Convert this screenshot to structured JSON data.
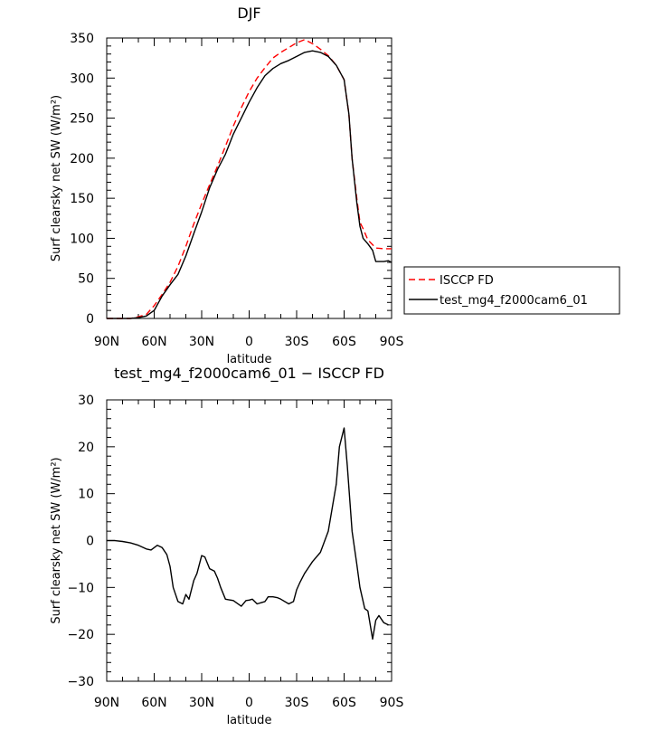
{
  "chart_data": [
    {
      "type": "line",
      "title": "DJF",
      "xlabel": "latitude",
      "ylabel": "Surf clearsky net SW (W/m²)",
      "xlim": [
        90,
        -90
      ],
      "ylim": [
        0,
        350
      ],
      "xticks": [
        90,
        60,
        30,
        0,
        -30,
        -60,
        -90
      ],
      "xtick_labels": [
        "90N",
        "60N",
        "30N",
        "0",
        "30S",
        "60S",
        "90S"
      ],
      "yticks": [
        0,
        50,
        100,
        150,
        200,
        250,
        300,
        350
      ],
      "ytick_labels": [
        "0",
        "50",
        "100",
        "150",
        "200",
        "250",
        "300",
        "350"
      ],
      "legend_position": "right",
      "series": [
        {
          "name": "ISCCP FD",
          "color": "#ff0000",
          "dash": "dashed",
          "x": [
            90,
            85,
            80,
            75,
            70,
            65,
            60,
            55,
            50,
            45,
            40,
            35,
            30,
            25,
            20,
            15,
            10,
            5,
            0,
            -5,
            -10,
            -15,
            -20,
            -25,
            -30,
            -35,
            -40,
            -45,
            -50,
            -55,
            -60,
            -63,
            -65,
            -68,
            -70,
            -72,
            -75,
            -80,
            -85,
            -90
          ],
          "values": [
            0,
            0,
            0,
            0,
            2,
            5,
            16,
            30,
            45,
            65,
            90,
            118,
            143,
            167,
            190,
            215,
            240,
            263,
            283,
            300,
            313,
            325,
            332,
            338,
            344,
            348,
            343,
            336,
            328,
            316,
            298,
            255,
            200,
            150,
            120,
            112,
            98,
            88,
            87,
            87
          ]
        },
        {
          "name": "test_mg4_f2000cam6_01",
          "color": "#000000",
          "dash": "solid",
          "x": [
            90,
            85,
            80,
            75,
            70,
            65,
            60,
            55,
            50,
            45,
            40,
            35,
            30,
            25,
            20,
            15,
            10,
            5,
            0,
            -5,
            -10,
            -15,
            -20,
            -25,
            -30,
            -35,
            -40,
            -45,
            -50,
            -55,
            -60,
            -63,
            -65,
            -68,
            -70,
            -72,
            -75,
            -78,
            -80,
            -85,
            -88,
            -90
          ],
          "values": [
            0,
            0,
            0,
            0,
            1,
            3,
            10,
            28,
            42,
            55,
            78,
            106,
            133,
            163,
            186,
            205,
            230,
            250,
            270,
            288,
            303,
            312,
            318,
            322,
            327,
            332,
            334,
            332,
            327,
            316,
            298,
            255,
            200,
            145,
            115,
            100,
            93,
            85,
            71,
            71,
            72,
            70
          ]
        }
      ]
    },
    {
      "type": "line",
      "title": "test_mg4_f2000cam6_01 − ISCCP FD",
      "xlabel": "latitude",
      "ylabel": "Surf clearsky net SW (W/m²)",
      "xlim": [
        90,
        -90
      ],
      "ylim": [
        -30,
        30
      ],
      "xticks": [
        90,
        60,
        30,
        0,
        -30,
        -60,
        -90
      ],
      "xtick_labels": [
        "90N",
        "60N",
        "30N",
        "0",
        "30S",
        "60S",
        "90S"
      ],
      "yticks": [
        -30,
        -20,
        -10,
        0,
        10,
        20,
        30
      ],
      "ytick_labels": [
        "−30",
        "−20",
        "−10",
        "0",
        "10",
        "20",
        "30"
      ],
      "series": [
        {
          "color": "#000000",
          "dash": "solid",
          "x": [
            90,
            85,
            80,
            75,
            70,
            65,
            62,
            60,
            58,
            55,
            52,
            50,
            48,
            45,
            42,
            40,
            38,
            35,
            33,
            30,
            28,
            25,
            22,
            20,
            18,
            15,
            10,
            5,
            2,
            0,
            -2,
            -5,
            -8,
            -10,
            -12,
            -15,
            -18,
            -20,
            -25,
            -28,
            -30,
            -32,
            -35,
            -37,
            -40,
            -45,
            -50,
            -55,
            -57,
            -60,
            -62,
            -65,
            -68,
            -70,
            -73,
            -75,
            -78,
            -80,
            -82,
            -85,
            -88
          ],
          "values": [
            0,
            0,
            -0.2,
            -0.5,
            -1,
            -1.8,
            -2,
            -1.5,
            -1,
            -1.5,
            -3,
            -5.5,
            -10,
            -13,
            -13.5,
            -11.5,
            -12.5,
            -8.5,
            -7,
            -3.2,
            -3.5,
            -6,
            -6.5,
            -8,
            -10,
            -12.5,
            -12.8,
            -14,
            -12.8,
            -12.7,
            -12.5,
            -13.5,
            -13.2,
            -13,
            -12,
            -12,
            -12.2,
            -12.5,
            -13.5,
            -13,
            -10.5,
            -9,
            -7,
            -6,
            -4.5,
            -2.5,
            2,
            12,
            20,
            24,
            16,
            2,
            -5,
            -10,
            -14.5,
            -15,
            -21,
            -17,
            -16,
            -17.5,
            -18
          ]
        }
      ]
    }
  ],
  "legend": {
    "items": [
      "ISCCP FD",
      "test_mg4_f2000cam6_01"
    ]
  }
}
